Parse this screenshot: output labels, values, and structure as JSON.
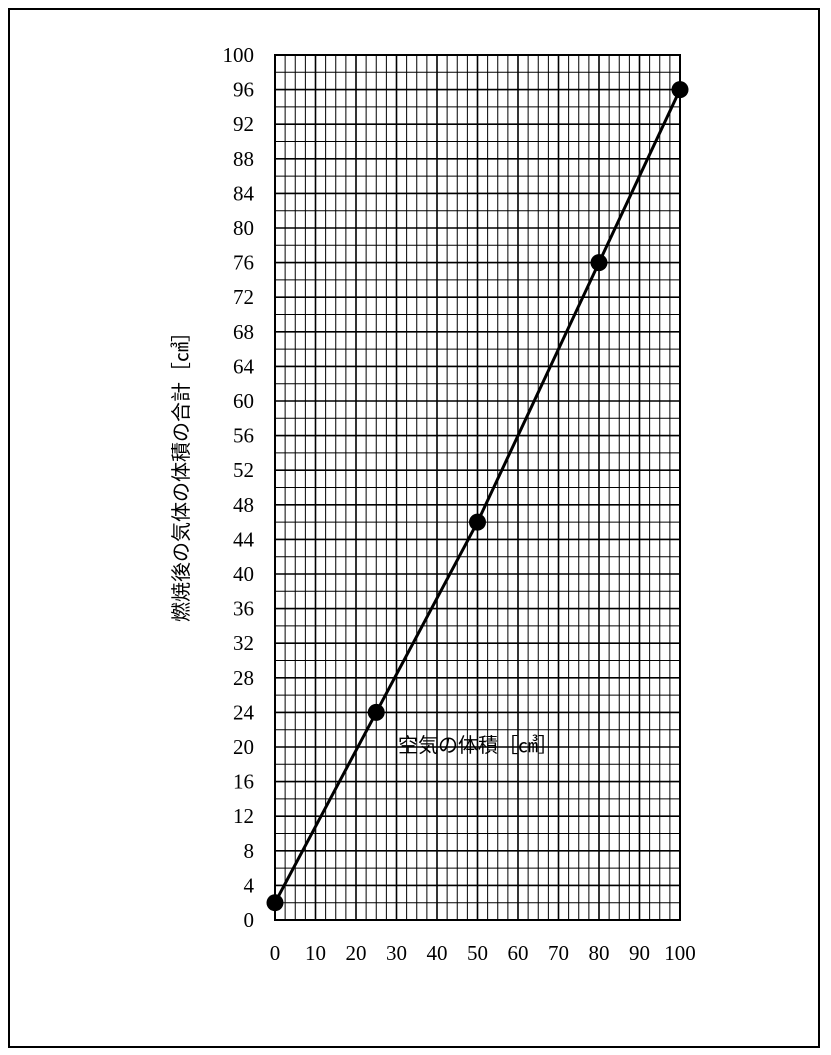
{
  "chart_data": {
    "type": "line",
    "xlabel": "空気の体積［㎤］",
    "ylabel": "燃焼後の気体の体積の合計［㎤］",
    "xlim": [
      0,
      100
    ],
    "ylim": [
      0,
      100
    ],
    "x_ticks": [
      0,
      10,
      20,
      30,
      40,
      50,
      60,
      70,
      80,
      90,
      100
    ],
    "y_ticks": [
      0,
      4,
      8,
      12,
      16,
      20,
      24,
      28,
      32,
      36,
      40,
      44,
      48,
      52,
      56,
      60,
      64,
      68,
      72,
      76,
      80,
      84,
      88,
      92,
      96,
      100
    ],
    "grid": true,
    "minor_grid_x_step": 2.5,
    "minor_grid_y_step": 2,
    "series": [
      {
        "points": [
          {
            "x": 0,
            "y": 2
          },
          {
            "x": 25,
            "y": 24
          },
          {
            "x": 50,
            "y": 46
          },
          {
            "x": 80,
            "y": 76
          },
          {
            "x": 100,
            "y": 96
          }
        ],
        "color": "#000000"
      }
    ]
  }
}
